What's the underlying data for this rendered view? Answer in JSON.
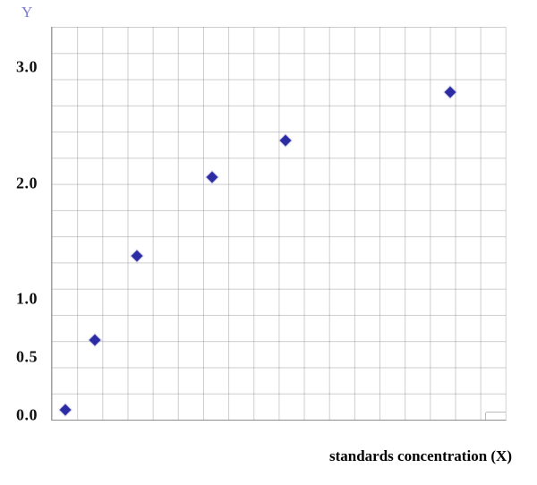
{
  "chart": {
    "y_axis_title": "Y",
    "x_axis_title": "standards concentration (X)",
    "colors": {
      "marker": "#2b2ba3",
      "grid": "#c9c9c9",
      "axis": "#a0a0a0",
      "y_title_text": "#7a7ad4",
      "tick_text": "#111111"
    }
  },
  "chart_data": {
    "type": "scatter",
    "title": "",
    "xlabel": "standards concentration (X)",
    "ylabel": "Y",
    "ylim": [
      0,
      3.35
    ],
    "grid": true,
    "legend": "none",
    "marker_shape": "diamond",
    "x_tick_labels": [],
    "y_ticks": [
      {
        "label": "3.0",
        "value": 3.0
      },
      {
        "label": "2.0",
        "value": 2.0
      },
      {
        "label": "1.0",
        "value": 1.0
      },
      {
        "label": "0.5",
        "value": 0.5
      },
      {
        "label": "0.0",
        "value": 0.0
      }
    ],
    "points": [
      {
        "x_frac": 0.03,
        "y": 0.05
      },
      {
        "x_frac": 0.095,
        "y": 0.65
      },
      {
        "x_frac": 0.187,
        "y": 1.37
      },
      {
        "x_frac": 0.354,
        "y": 2.05
      },
      {
        "x_frac": 0.514,
        "y": 2.37
      },
      {
        "x_frac": 0.878,
        "y": 2.78
      }
    ]
  }
}
